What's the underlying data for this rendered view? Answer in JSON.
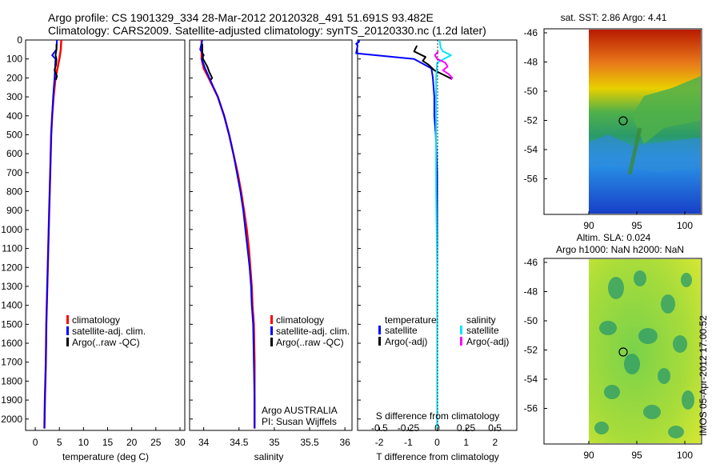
{
  "header": {
    "line1": "Argo profile: CS 1901329_334 28-Mar-2012 20120328_491 51.691S 93.482E",
    "line2": "Climatology: CARS2009. Satellite-adjusted climatology: synTS_20120330.nc (1.2d later)"
  },
  "colors": {
    "red": "#ff0000",
    "blue": "#0000ff",
    "black": "#000000",
    "cyan": "#00e5ff",
    "magenta": "#ff00ff"
  },
  "depth_axis": {
    "ticks": [
      0,
      100,
      200,
      300,
      400,
      500,
      600,
      700,
      800,
      900,
      1000,
      1100,
      1200,
      1300,
      1400,
      1500,
      1600,
      1700,
      1800,
      1900,
      2000
    ]
  },
  "panels": {
    "temperature": {
      "xlabel": "temperature (deg C)",
      "xticks": [
        "0",
        "5",
        "10",
        "15",
        "20",
        "25",
        "30"
      ],
      "legend": [
        "climatology",
        "satellite-adj. clim.",
        "Argo(..raw -QC)"
      ]
    },
    "salinity": {
      "xlabel": "salinity",
      "xticks": [
        "34",
        "34.5",
        "35",
        "35.5",
        "36"
      ],
      "legend": [
        "climatology",
        "satellite-adj. clim.",
        "Argo(..raw -QC)"
      ],
      "note1": "Argo AUSTRALIA",
      "note2": "PI: Susan Wijffels"
    },
    "difference": {
      "xlabel": "T difference from climatology",
      "xticks": [
        "-2",
        "-1",
        "0",
        "1",
        "2"
      ],
      "top_label": "S difference from climatology",
      "top_ticks": [
        "-0.5",
        "-0.25",
        "0",
        "0.25",
        "0.5"
      ],
      "legend_t_title": "temperature",
      "legend_s_title": "salinity",
      "legend_t": [
        "satellite",
        "Argo(-adj)"
      ],
      "legend_s": [
        "satellite",
        "Argo(-adj)"
      ]
    },
    "sst_map": {
      "title": "sat. SST: 2.86 Argo: 4.41",
      "yticks": [
        "-46",
        "-48",
        "-50",
        "-52",
        "-54",
        "-56"
      ],
      "xticks": [
        "90",
        "95",
        "100"
      ]
    },
    "sla_map": {
      "title1": "Altim. SLA: 0.024",
      "title2": "Argo h1000: NaN h2000: NaN",
      "yticks": [
        "-46",
        "-48",
        "-50",
        "-52",
        "-54",
        "-56"
      ],
      "xticks": [
        "90",
        "95",
        "100"
      ]
    }
  },
  "stamp": "IMOS 05-Apr-2012 17:00:52",
  "chart_data": [
    {
      "type": "line",
      "title": "",
      "xlabel": "temperature (deg C)",
      "ylabel": "depth",
      "xlim": [
        -2,
        31
      ],
      "ylim": [
        2060,
        0
      ],
      "series": [
        {
          "name": "climatology",
          "depth": [
            0,
            50,
            100,
            150,
            200,
            300,
            400,
            500,
            700,
            900,
            1100,
            1300,
            1500,
            1700,
            1900,
            2050
          ],
          "values": [
            5.4,
            5.3,
            5.0,
            4.6,
            4.2,
            3.8,
            3.5,
            3.3,
            3.1,
            2.9,
            2.7,
            2.5,
            2.3,
            2.2,
            2.0,
            1.9
          ]
        },
        {
          "name": "satellite-adj. clim.",
          "depth": [
            0,
            50,
            80,
            100,
            150,
            200,
            300,
            400,
            500,
            700,
            900,
            1100,
            1300,
            1500,
            1700,
            1900,
            2050
          ],
          "values": [
            4.5,
            4.4,
            3.5,
            4.2,
            4.1,
            4.0,
            3.7,
            3.5,
            3.3,
            3.1,
            2.9,
            2.7,
            2.5,
            2.3,
            2.2,
            2.0,
            1.9
          ]
        },
        {
          "name": "Argo(..raw -QC)",
          "depth": [
            20,
            50,
            80,
            100,
            130,
            160,
            190,
            210
          ],
          "values": [
            4.4,
            4.4,
            4.2,
            4.4,
            4.3,
            4.0,
            4.5,
            4.3
          ]
        }
      ]
    },
    {
      "type": "line",
      "xlabel": "salinity",
      "ylabel": "depth",
      "xlim": [
        33.8,
        36.1
      ],
      "ylim": [
        2060,
        0
      ],
      "series": [
        {
          "name": "climatology",
          "depth": [
            0,
            100,
            150,
            200,
            300,
            400,
            500,
            600,
            700,
            800,
            900,
            1000,
            1100,
            1200,
            1300,
            1400,
            1500,
            1700,
            1900,
            2050
          ],
          "values": [
            33.97,
            33.97,
            34.0,
            34.07,
            34.2,
            34.29,
            34.36,
            34.42,
            34.48,
            34.53,
            34.57,
            34.61,
            34.64,
            34.66,
            34.68,
            34.69,
            34.71,
            34.72,
            34.72,
            34.72
          ]
        },
        {
          "name": "satellite-adj. clim.",
          "depth": [
            0,
            50,
            80,
            100,
            150,
            200,
            300,
            400,
            500,
            600,
            700,
            800,
            900,
            1000,
            1100,
            1200,
            1300,
            1400,
            1500,
            1700,
            1900,
            2050
          ],
          "values": [
            33.98,
            33.95,
            34.0,
            33.97,
            34.02,
            34.08,
            34.2,
            34.29,
            34.36,
            34.42,
            34.47,
            34.52,
            34.56,
            34.59,
            34.62,
            34.65,
            34.67,
            34.68,
            34.7,
            34.71,
            34.72,
            34.72
          ]
        },
        {
          "name": "Argo(..raw -QC)",
          "depth": [
            20,
            60,
            100,
            140,
            170,
            200,
            210
          ],
          "values": [
            33.98,
            33.98,
            33.99,
            34.05,
            34.08,
            34.12,
            34.1
          ]
        }
      ]
    },
    {
      "type": "line",
      "xlabel": "T difference from climatology",
      "ylabel": "depth",
      "xlim": [
        -2.75,
        2.75
      ],
      "ylim": [
        2060,
        0
      ],
      "secondary_axis": {
        "label": "S difference from climatology",
        "xlim": [
          -0.69,
          0.69
        ]
      },
      "series": [
        {
          "name": "temperature satellite",
          "depth": [
            0,
            10,
            20,
            30,
            70,
            100,
            150,
            200,
            300,
            400,
            500,
            700,
            1000,
            1500,
            2050
          ],
          "values": [
            -2.7,
            -2.7,
            -2.8,
            -2.75,
            -2.8,
            -0.8,
            -0.2,
            -0.15,
            -0.1,
            -0.1,
            -0.05,
            0,
            0,
            0,
            0
          ]
        },
        {
          "name": "temperature Argo(-adj)",
          "depth": [
            30,
            60,
            90,
            110,
            130,
            160,
            190,
            205
          ],
          "values": [
            -0.7,
            -0.8,
            -0.4,
            -0.5,
            -0.3,
            -0.1,
            0.3,
            0.5
          ]
        },
        {
          "name": "salinity satellite",
          "depth": [
            0,
            40,
            60,
            80,
            120,
            200,
            400,
            800,
            1200,
            1600,
            2050
          ],
          "values": [
            0.02,
            0.03,
            0.05,
            0.12,
            0.0,
            -0.01,
            -0.01,
            -0.01,
            0.0,
            0.0,
            0.0
          ]
        },
        {
          "name": "salinity Argo(-adj)",
          "depth": [
            60,
            80,
            100,
            120,
            140,
            160,
            180,
            200,
            210
          ],
          "values": [
            0.01,
            -0.02,
            0.0,
            0.07,
            0.09,
            0.05,
            0.1,
            0.13,
            0.12
          ]
        }
      ]
    }
  ]
}
